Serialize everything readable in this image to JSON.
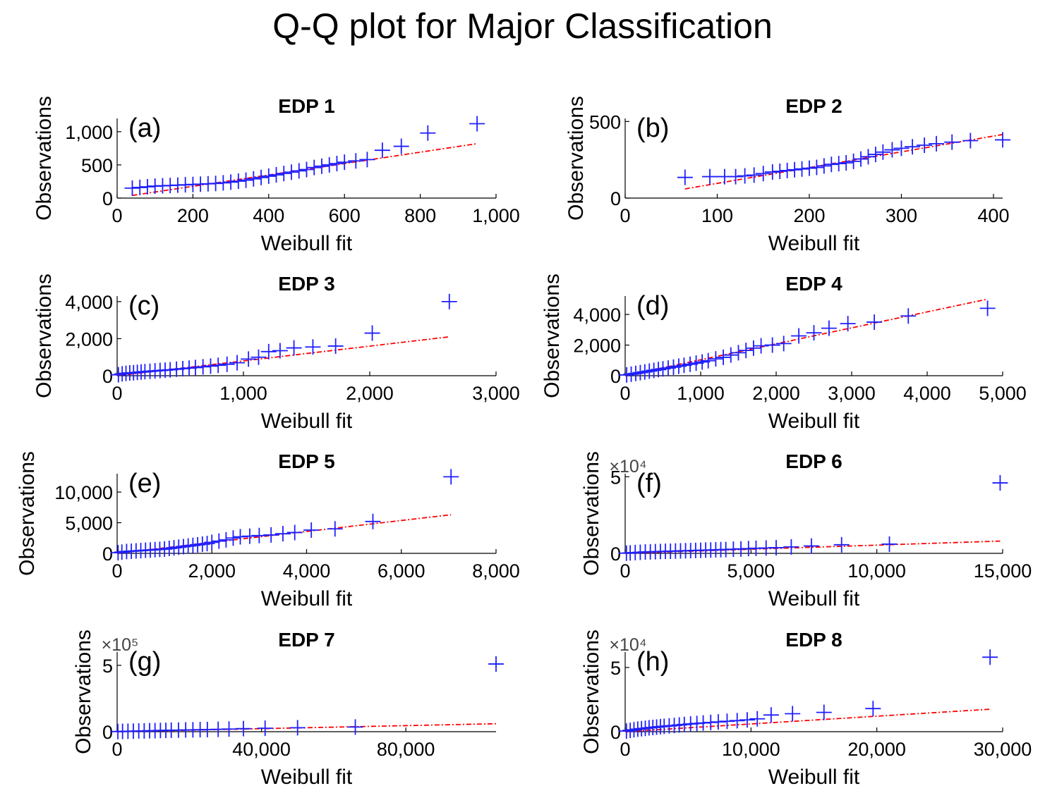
{
  "title": "Q-Q plot for Major Classification",
  "colors": {
    "markers": "#1f1fff",
    "fit_line": "#ff0000",
    "axis": "#000000"
  },
  "chart_data": [
    {
      "type": "scatter",
      "panel_label": "(a)",
      "title": "EDP 1",
      "xlabel": "Weibull fit",
      "ylabel": "Observations",
      "xlim": [
        0,
        1000
      ],
      "ylim": [
        0,
        1200
      ],
      "xticks": [
        0,
        200,
        400,
        600,
        800,
        1000
      ],
      "xtick_labels": [
        "0",
        "200",
        "400",
        "600",
        "800",
        "1,000"
      ],
      "yticks": [
        0,
        500,
        1000
      ],
      "ytick_labels": [
        "0",
        "500",
        "1,000"
      ],
      "exponent": "",
      "x": [
        40,
        60,
        80,
        100,
        120,
        140,
        160,
        180,
        200,
        220,
        240,
        260,
        280,
        300,
        320,
        340,
        360,
        380,
        400,
        420,
        440,
        460,
        480,
        500,
        520,
        540,
        560,
        580,
        600,
        630,
        660,
        700,
        750,
        820,
        950
      ],
      "y": [
        150,
        160,
        170,
        180,
        185,
        190,
        195,
        200,
        205,
        210,
        215,
        220,
        230,
        240,
        255,
        270,
        290,
        310,
        330,
        350,
        370,
        390,
        410,
        430,
        460,
        480,
        500,
        520,
        540,
        560,
        580,
        720,
        780,
        980,
        1120
      ],
      "fit_line": {
        "x": [
          40,
          950
        ],
        "y": [
          40,
          820
        ]
      }
    },
    {
      "type": "scatter",
      "panel_label": "(b)",
      "title": "EDP 2",
      "xlabel": "Weibull fit",
      "ylabel": "Observations",
      "xlim": [
        0,
        410
      ],
      "ylim": [
        0,
        520
      ],
      "xticks": [
        0,
        100,
        200,
        300,
        400
      ],
      "xtick_labels": [
        "0",
        "100",
        "200",
        "300",
        "400"
      ],
      "yticks": [
        0,
        500
      ],
      "ytick_labels": [
        "0",
        "500"
      ],
      "exponent": "",
      "x": [
        65,
        92,
        108,
        120,
        130,
        140,
        150,
        160,
        168,
        176,
        184,
        192,
        200,
        208,
        216,
        224,
        232,
        240,
        248,
        256,
        264,
        272,
        280,
        290,
        300,
        312,
        325,
        338,
        355,
        375,
        410
      ],
      "y": [
        135,
        140,
        140,
        140,
        145,
        150,
        160,
        170,
        175,
        180,
        185,
        190,
        195,
        200,
        210,
        220,
        225,
        230,
        240,
        255,
        270,
        285,
        300,
        315,
        325,
        335,
        345,
        355,
        365,
        375,
        380
      ],
      "fit_line": {
        "x": [
          65,
          410
        ],
        "y": [
          60,
          415
        ]
      }
    },
    {
      "type": "scatter",
      "panel_label": "(c)",
      "title": "EDP 3",
      "xlabel": "Weibull fit",
      "ylabel": "Observations",
      "xlim": [
        0,
        3000
      ],
      "ylim": [
        0,
        4300
      ],
      "xticks": [
        0,
        1000,
        2000,
        3000
      ],
      "xtick_labels": [
        "0",
        "1,000",
        "2,000",
        "3,000"
      ],
      "yticks": [
        0,
        2000,
        4000
      ],
      "ytick_labels": [
        "0",
        "2,000",
        "4,000"
      ],
      "exponent": "",
      "x": [
        10,
        40,
        70,
        100,
        130,
        160,
        190,
        220,
        260,
        300,
        340,
        380,
        420,
        470,
        520,
        570,
        620,
        680,
        740,
        800,
        870,
        950,
        1040,
        1120,
        1200,
        1290,
        1400,
        1550,
        1730,
        2020,
        2630
      ],
      "y": [
        50,
        100,
        130,
        150,
        160,
        180,
        200,
        220,
        240,
        260,
        280,
        300,
        320,
        350,
        380,
        410,
        440,
        480,
        520,
        560,
        620,
        700,
        900,
        1000,
        1300,
        1350,
        1500,
        1550,
        1600,
        2300,
        4000
      ],
      "fit_line": {
        "x": [
          0,
          2630
        ],
        "y": [
          0,
          2100
        ]
      }
    },
    {
      "type": "scatter",
      "panel_label": "(d)",
      "title": "EDP 4",
      "xlabel": "Weibull fit",
      "ylabel": "Observations",
      "xlim": [
        0,
        5000
      ],
      "ylim": [
        0,
        5200
      ],
      "xticks": [
        0,
        1000,
        2000,
        3000,
        4000,
        5000
      ],
      "xtick_labels": [
        "0",
        "1,000",
        "2,000",
        "3,000",
        "4,000",
        "5,000"
      ],
      "yticks": [
        0,
        2000,
        4000
      ],
      "ytick_labels": [
        "0",
        "2,000",
        "4,000"
      ],
      "exponent": "",
      "x": [
        20,
        80,
        140,
        200,
        260,
        320,
        380,
        440,
        500,
        570,
        640,
        710,
        780,
        860,
        940,
        1020,
        1100,
        1200,
        1300,
        1400,
        1500,
        1600,
        1700,
        1800,
        1950,
        2100,
        2300,
        2500,
        2700,
        2950,
        3300,
        3750,
        4800
      ],
      "y": [
        50,
        100,
        150,
        200,
        250,
        300,
        350,
        400,
        450,
        500,
        560,
        620,
        680,
        750,
        820,
        900,
        980,
        1100,
        1200,
        1350,
        1500,
        1650,
        1800,
        1950,
        2000,
        2100,
        2600,
        2800,
        3100,
        3400,
        3500,
        3900,
        4400
      ],
      "fit_line": {
        "x": [
          0,
          4800
        ],
        "y": [
          0,
          5000
        ]
      }
    },
    {
      "type": "scatter",
      "panel_label": "(e)",
      "title": "EDP 5",
      "xlabel": "Weibull fit",
      "ylabel": "Observations",
      "xlim": [
        0,
        8000
      ],
      "ylim": [
        0,
        13000
      ],
      "xticks": [
        0,
        2000,
        4000,
        6000,
        8000
      ],
      "xtick_labels": [
        "0",
        "2,000",
        "4,000",
        "6,000",
        "8,000"
      ],
      "yticks": [
        0,
        5000,
        10000
      ],
      "ytick_labels": [
        "0",
        "5,000",
        "10,000"
      ],
      "exponent": "",
      "x": [
        20,
        100,
        200,
        300,
        400,
        500,
        600,
        700,
        800,
        900,
        1000,
        1100,
        1200,
        1300,
        1400,
        1500,
        1600,
        1700,
        1800,
        1900,
        2000,
        2150,
        2300,
        2450,
        2600,
        2800,
        3000,
        3250,
        3500,
        3750,
        4100,
        4600,
        5400,
        7050
      ],
      "y": [
        100,
        200,
        300,
        350,
        400,
        450,
        500,
        550,
        600,
        650,
        700,
        800,
        900,
        1000,
        1100,
        1200,
        1300,
        1400,
        1500,
        1600,
        1800,
        2000,
        2200,
        2500,
        2700,
        2800,
        2900,
        3000,
        3200,
        3400,
        3800,
        4000,
        5200,
        12500
      ],
      "fit_line": {
        "x": [
          0,
          7050
        ],
        "y": [
          0,
          6300
        ]
      }
    },
    {
      "type": "scatter",
      "panel_label": "(f)",
      "title": "EDP 6",
      "xlabel": "Weibull fit",
      "ylabel": "Observations",
      "xlim": [
        0,
        15000
      ],
      "ylim": [
        0,
        52000
      ],
      "xticks": [
        0,
        5000,
        10000,
        15000
      ],
      "xtick_labels": [
        "0",
        "5,000",
        "10,000",
        "15,000"
      ],
      "yticks": [
        0,
        5
      ],
      "ytick_labels": [
        "0",
        "5"
      ],
      "exponent": "×10⁴",
      "x": [
        50,
        200,
        400,
        600,
        800,
        1000,
        1200,
        1400,
        1600,
        1800,
        2000,
        2200,
        2400,
        2600,
        2800,
        3000,
        3200,
        3400,
        3600,
        3800,
        4000,
        4300,
        4600,
        4900,
        5200,
        5600,
        6000,
        6600,
        7400,
        8600,
        10500,
        14900
      ],
      "y": [
        100,
        300,
        500,
        700,
        900,
        1000,
        1100,
        1200,
        1300,
        1400,
        1500,
        1600,
        1700,
        1800,
        1900,
        2000,
        2100,
        2200,
        2300,
        2400,
        2500,
        2700,
        2900,
        3100,
        3300,
        3500,
        3700,
        4200,
        4800,
        5600,
        6000,
        46000
      ],
      "fit_line": {
        "x": [
          0,
          14900
        ],
        "y": [
          0,
          8000
        ]
      }
    },
    {
      "type": "scatter",
      "panel_label": "(g)",
      "title": "EDP 7",
      "xlabel": "Weibull fit",
      "ylabel": "Observations",
      "xlim": [
        0,
        105000
      ],
      "ylim": [
        0,
        600000
      ],
      "xticks": [
        0,
        40000,
        80000
      ],
      "xtick_labels": [
        "0",
        "40,000",
        "80,000"
      ],
      "yticks": [
        0,
        5
      ],
      "ytick_labels": [
        "0",
        "5"
      ],
      "exponent": "×10⁵",
      "x": [
        200,
        1500,
        3000,
        4500,
        6000,
        7500,
        9000,
        10500,
        12000,
        13500,
        15000,
        17000,
        19000,
        21000,
        23000,
        25000,
        28000,
        31000,
        35000,
        41000,
        50000,
        66000,
        105000
      ],
      "y": [
        1000,
        2000,
        3000,
        4000,
        5000,
        6000,
        7000,
        8000,
        9000,
        10000,
        11000,
        12000,
        13000,
        14000,
        15000,
        16000,
        18000,
        20000,
        23000,
        26000,
        30000,
        35000,
        510000
      ],
      "fit_line": {
        "x": [
          0,
          105000
        ],
        "y": [
          0,
          60000
        ]
      }
    },
    {
      "type": "scatter",
      "panel_label": "(h)",
      "title": "EDP 8",
      "xlabel": "Weibull fit",
      "ylabel": "Observations",
      "xlim": [
        0,
        30000
      ],
      "ylim": [
        0,
        62000
      ],
      "xticks": [
        0,
        10000,
        20000,
        30000
      ],
      "xtick_labels": [
        "0",
        "10,000",
        "20,000",
        "30,000"
      ],
      "yticks": [
        0,
        5
      ],
      "ytick_labels": [
        "0",
        "5"
      ],
      "exponent": "×10⁴",
      "x": [
        100,
        400,
        700,
        1000,
        1300,
        1600,
        1900,
        2200,
        2500,
        2800,
        3100,
        3500,
        3900,
        4300,
        4700,
        5200,
        5700,
        6200,
        6800,
        7400,
        8100,
        8900,
        9700,
        10500,
        11600,
        13300,
        15800,
        19700,
        29000
      ],
      "y": [
        500,
        1000,
        1500,
        2000,
        2300,
        2600,
        3000,
        3300,
        3600,
        3900,
        4200,
        4500,
        4800,
        5200,
        5600,
        6000,
        6400,
        6800,
        7200,
        7600,
        8100,
        8600,
        9200,
        10000,
        13000,
        14000,
        15000,
        18000,
        58000
      ],
      "fit_line": {
        "x": [
          0,
          29000
        ],
        "y": [
          0,
          17500
        ]
      }
    }
  ]
}
